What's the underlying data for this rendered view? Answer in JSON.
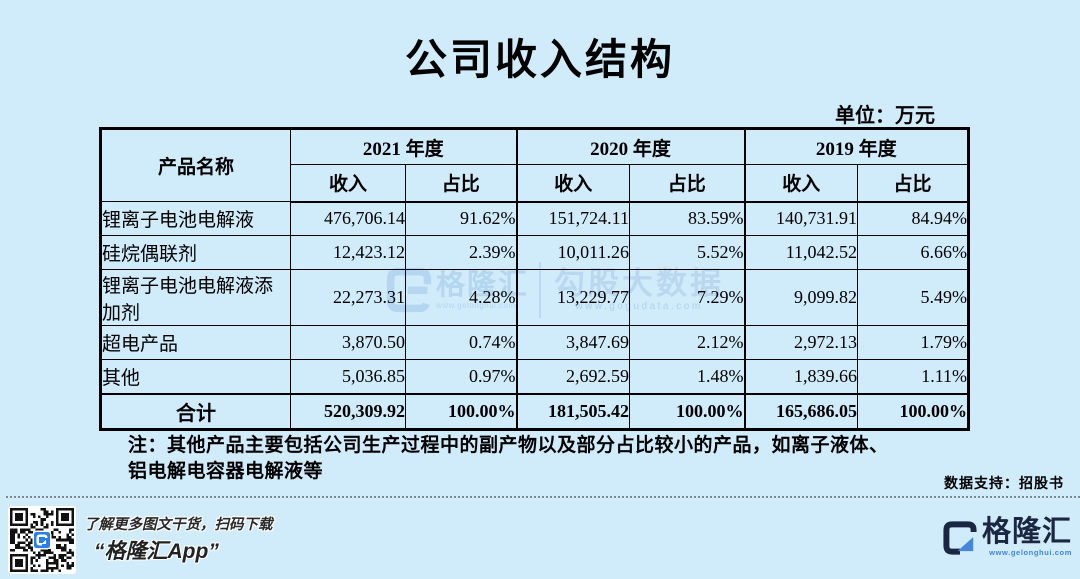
{
  "title": "公司收入结构",
  "unit_label": "单位：万元",
  "table": {
    "product_header": "产品名称",
    "year_groups": [
      {
        "label": "2021 年度"
      },
      {
        "label": "2020 年度"
      },
      {
        "label": "2019 年度"
      }
    ],
    "sub_headers": {
      "revenue": "收入",
      "share": "占比"
    },
    "rows": [
      {
        "name": "锂离子电池电解液",
        "values": [
          "476,706.14",
          "91.62%",
          "151,724.11",
          "83.59%",
          "140,731.91",
          "84.94%"
        ]
      },
      {
        "name": "硅烷偶联剂",
        "values": [
          "12,423.12",
          "2.39%",
          "10,011.26",
          "5.52%",
          "11,042.52",
          "6.66%"
        ]
      },
      {
        "name": "锂离子电池电解液添加剂",
        "values": [
          "22,273.31",
          "4.28%",
          "13,229.77",
          "7.29%",
          "9,099.82",
          "5.49%"
        ]
      },
      {
        "name": "超电产品",
        "values": [
          "3,870.50",
          "0.74%",
          "3,847.69",
          "2.12%",
          "2,972.13",
          "1.79%"
        ]
      },
      {
        "name": "其他",
        "values": [
          "5,036.85",
          "0.97%",
          "2,692.59",
          "1.48%",
          "1,839.66",
          "1.11%"
        ]
      }
    ],
    "total_row": {
      "name": "合计",
      "values": [
        "520,309.92",
        "100.00%",
        "181,505.42",
        "100.00%",
        "165,686.05",
        "100.00%"
      ]
    }
  },
  "note": "注：其他产品主要包括公司生产过程中的副产物以及部分占比较小的产品，如离子液体、铝电解电容器电解液等",
  "source": "数据支持：招股书",
  "watermark": {
    "brand": "格隆汇",
    "brand_url": "www.gelonghui.com",
    "data_brand": "勾股大数据",
    "data_url": "www.gogudata.com"
  },
  "footer": {
    "qr_caption_line1": "了解更多图文干货，扫码下载",
    "qr_caption_line2": "“格隆汇App”",
    "logo_text": "格隆汇",
    "logo_url": "www.gelonghui.com"
  },
  "colors": {
    "background": "#d0ebfa",
    "table_border": "#000000",
    "brand_navy": "#1b2742",
    "brand_blue": "#4586d9",
    "qr_logo_blue": "#2b80e8",
    "watermark_blue": "#aed1ee"
  },
  "chart_data": {
    "type": "table",
    "title": "公司收入结构",
    "unit": "万元",
    "columns": [
      "产品名称",
      "2021年度 收入",
      "2021年度 占比",
      "2020年度 收入",
      "2020年度 占比",
      "2019年度 收入",
      "2019年度 占比"
    ],
    "rows": [
      [
        "锂离子电池电解液",
        "476,706.14",
        "91.62%",
        "151,724.11",
        "83.59%",
        "140,731.91",
        "84.94%"
      ],
      [
        "硅烷偶联剂",
        "12,423.12",
        "2.39%",
        "10,011.26",
        "5.52%",
        "11,042.52",
        "6.66%"
      ],
      [
        "锂离子电池电解液添加剂",
        "22,273.31",
        "4.28%",
        "13,229.77",
        "7.29%",
        "9,099.82",
        "5.49%"
      ],
      [
        "超电产品",
        "3,870.50",
        "0.74%",
        "3,847.69",
        "2.12%",
        "2,972.13",
        "1.79%"
      ],
      [
        "其他",
        "5,036.85",
        "0.97%",
        "2,692.59",
        "1.48%",
        "1,839.66",
        "1.11%"
      ],
      [
        "合计",
        "520,309.92",
        "100.00%",
        "181,505.42",
        "100.00%",
        "165,686.05",
        "100.00%"
      ]
    ],
    "footnote": "注：其他产品主要包括公司生产过程中的副产物以及部分占比较小的产品，如离子液体、铝电解电容器电解液等",
    "source": "数据支持：招股书"
  }
}
